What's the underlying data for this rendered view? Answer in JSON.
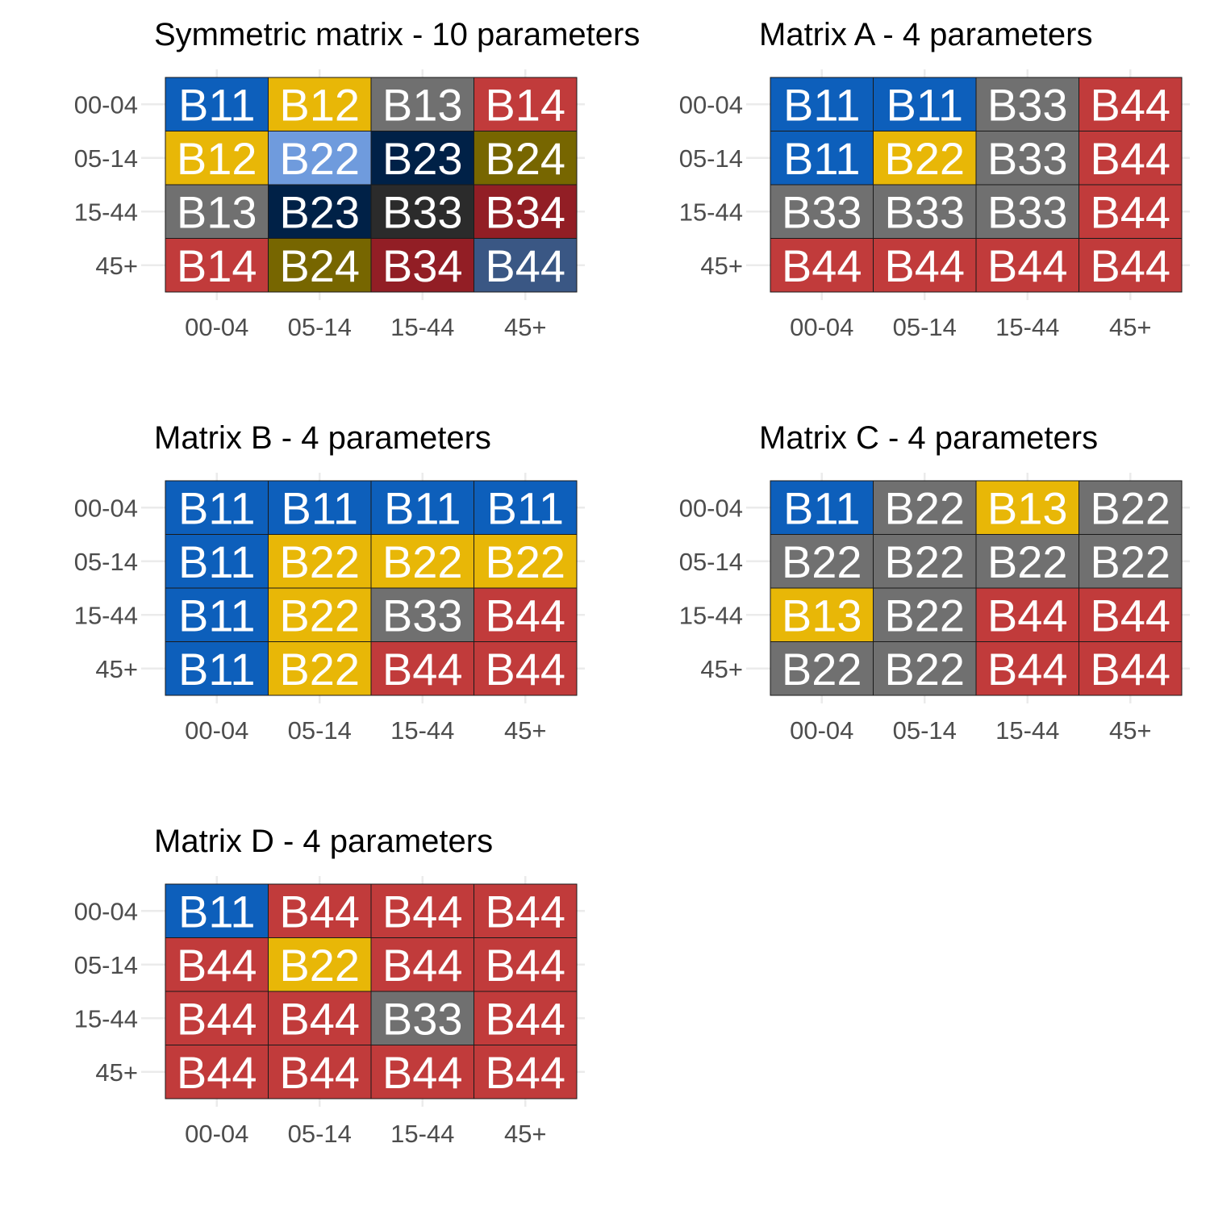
{
  "colors": {
    "#0D5FBB": "#0D5FBB",
    "#E8B707": "#E8B707",
    "#707070": "#707070",
    "#C13B3B": "#C13B3B",
    "#6F9BDD": "#6F9BDD",
    "#002147": "#002147",
    "#776600": "#776600",
    "#2B2B2B": "#2B2B2B",
    "#921E25": "#921E25",
    "#3A5784": "#3A5784"
  },
  "chart_data": [
    {
      "type": "heatmap",
      "title": "Symmetric matrix - 10 parameters",
      "x_categories": [
        "00-04",
        "05-14",
        "15-44",
        "45+"
      ],
      "y_categories": [
        "00-04",
        "05-14",
        "15-44",
        "45+"
      ],
      "cells": [
        [
          "B11",
          "B12",
          "B13",
          "B14"
        ],
        [
          "B12",
          "B22",
          "B23",
          "B24"
        ],
        [
          "B13",
          "B23",
          "B33",
          "B34"
        ],
        [
          "B14",
          "B24",
          "B34",
          "B44"
        ]
      ],
      "fill": [
        [
          "#0D5FBB",
          "#E8B707",
          "#707070",
          "#C13B3B"
        ],
        [
          "#E8B707",
          "#6F9BDD",
          "#002147",
          "#776600"
        ],
        [
          "#707070",
          "#002147",
          "#2B2B2B",
          "#921E25"
        ],
        [
          "#C13B3B",
          "#776600",
          "#921E25",
          "#3A5784"
        ]
      ]
    },
    {
      "type": "heatmap",
      "title": "Matrix A - 4 parameters",
      "x_categories": [
        "00-04",
        "05-14",
        "15-44",
        "45+"
      ],
      "y_categories": [
        "00-04",
        "05-14",
        "15-44",
        "45+"
      ],
      "cells": [
        [
          "B11",
          "B11",
          "B33",
          "B44"
        ],
        [
          "B11",
          "B22",
          "B33",
          "B44"
        ],
        [
          "B33",
          "B33",
          "B33",
          "B44"
        ],
        [
          "B44",
          "B44",
          "B44",
          "B44"
        ]
      ],
      "fill": [
        [
          "#0D5FBB",
          "#0D5FBB",
          "#707070",
          "#C13B3B"
        ],
        [
          "#0D5FBB",
          "#E8B707",
          "#707070",
          "#C13B3B"
        ],
        [
          "#707070",
          "#707070",
          "#707070",
          "#C13B3B"
        ],
        [
          "#C13B3B",
          "#C13B3B",
          "#C13B3B",
          "#C13B3B"
        ]
      ]
    },
    {
      "type": "heatmap",
      "title": "Matrix B - 4 parameters",
      "x_categories": [
        "00-04",
        "05-14",
        "15-44",
        "45+"
      ],
      "y_categories": [
        "00-04",
        "05-14",
        "15-44",
        "45+"
      ],
      "cells": [
        [
          "B11",
          "B11",
          "B11",
          "B11"
        ],
        [
          "B11",
          "B22",
          "B22",
          "B22"
        ],
        [
          "B11",
          "B22",
          "B33",
          "B44"
        ],
        [
          "B11",
          "B22",
          "B44",
          "B44"
        ]
      ],
      "fill": [
        [
          "#0D5FBB",
          "#0D5FBB",
          "#0D5FBB",
          "#0D5FBB"
        ],
        [
          "#0D5FBB",
          "#E8B707",
          "#E8B707",
          "#E8B707"
        ],
        [
          "#0D5FBB",
          "#E8B707",
          "#707070",
          "#C13B3B"
        ],
        [
          "#0D5FBB",
          "#E8B707",
          "#C13B3B",
          "#C13B3B"
        ]
      ]
    },
    {
      "type": "heatmap",
      "title": "Matrix C - 4 parameters",
      "x_categories": [
        "00-04",
        "05-14",
        "15-44",
        "45+"
      ],
      "y_categories": [
        "00-04",
        "05-14",
        "15-44",
        "45+"
      ],
      "cells": [
        [
          "B11",
          "B22",
          "B13",
          "B22"
        ],
        [
          "B22",
          "B22",
          "B22",
          "B22"
        ],
        [
          "B13",
          "B22",
          "B44",
          "B44"
        ],
        [
          "B22",
          "B22",
          "B44",
          "B44"
        ]
      ],
      "fill": [
        [
          "#0D5FBB",
          "#707070",
          "#E8B707",
          "#707070"
        ],
        [
          "#707070",
          "#707070",
          "#707070",
          "#707070"
        ],
        [
          "#E8B707",
          "#707070",
          "#C13B3B",
          "#C13B3B"
        ],
        [
          "#707070",
          "#707070",
          "#C13B3B",
          "#C13B3B"
        ]
      ]
    },
    {
      "type": "heatmap",
      "title": "Matrix D - 4 parameters",
      "x_categories": [
        "00-04",
        "05-14",
        "15-44",
        "45+"
      ],
      "y_categories": [
        "00-04",
        "05-14",
        "15-44",
        "45+"
      ],
      "cells": [
        [
          "B11",
          "B44",
          "B44",
          "B44"
        ],
        [
          "B44",
          "B22",
          "B44",
          "B44"
        ],
        [
          "B44",
          "B44",
          "B33",
          "B44"
        ],
        [
          "B44",
          "B44",
          "B44",
          "B44"
        ]
      ],
      "fill": [
        [
          "#0D5FBB",
          "#C13B3B",
          "#C13B3B",
          "#C13B3B"
        ],
        [
          "#C13B3B",
          "#E8B707",
          "#C13B3B",
          "#C13B3B"
        ],
        [
          "#C13B3B",
          "#C13B3B",
          "#707070",
          "#C13B3B"
        ],
        [
          "#C13B3B",
          "#C13B3B",
          "#C13B3B",
          "#C13B3B"
        ]
      ]
    }
  ]
}
